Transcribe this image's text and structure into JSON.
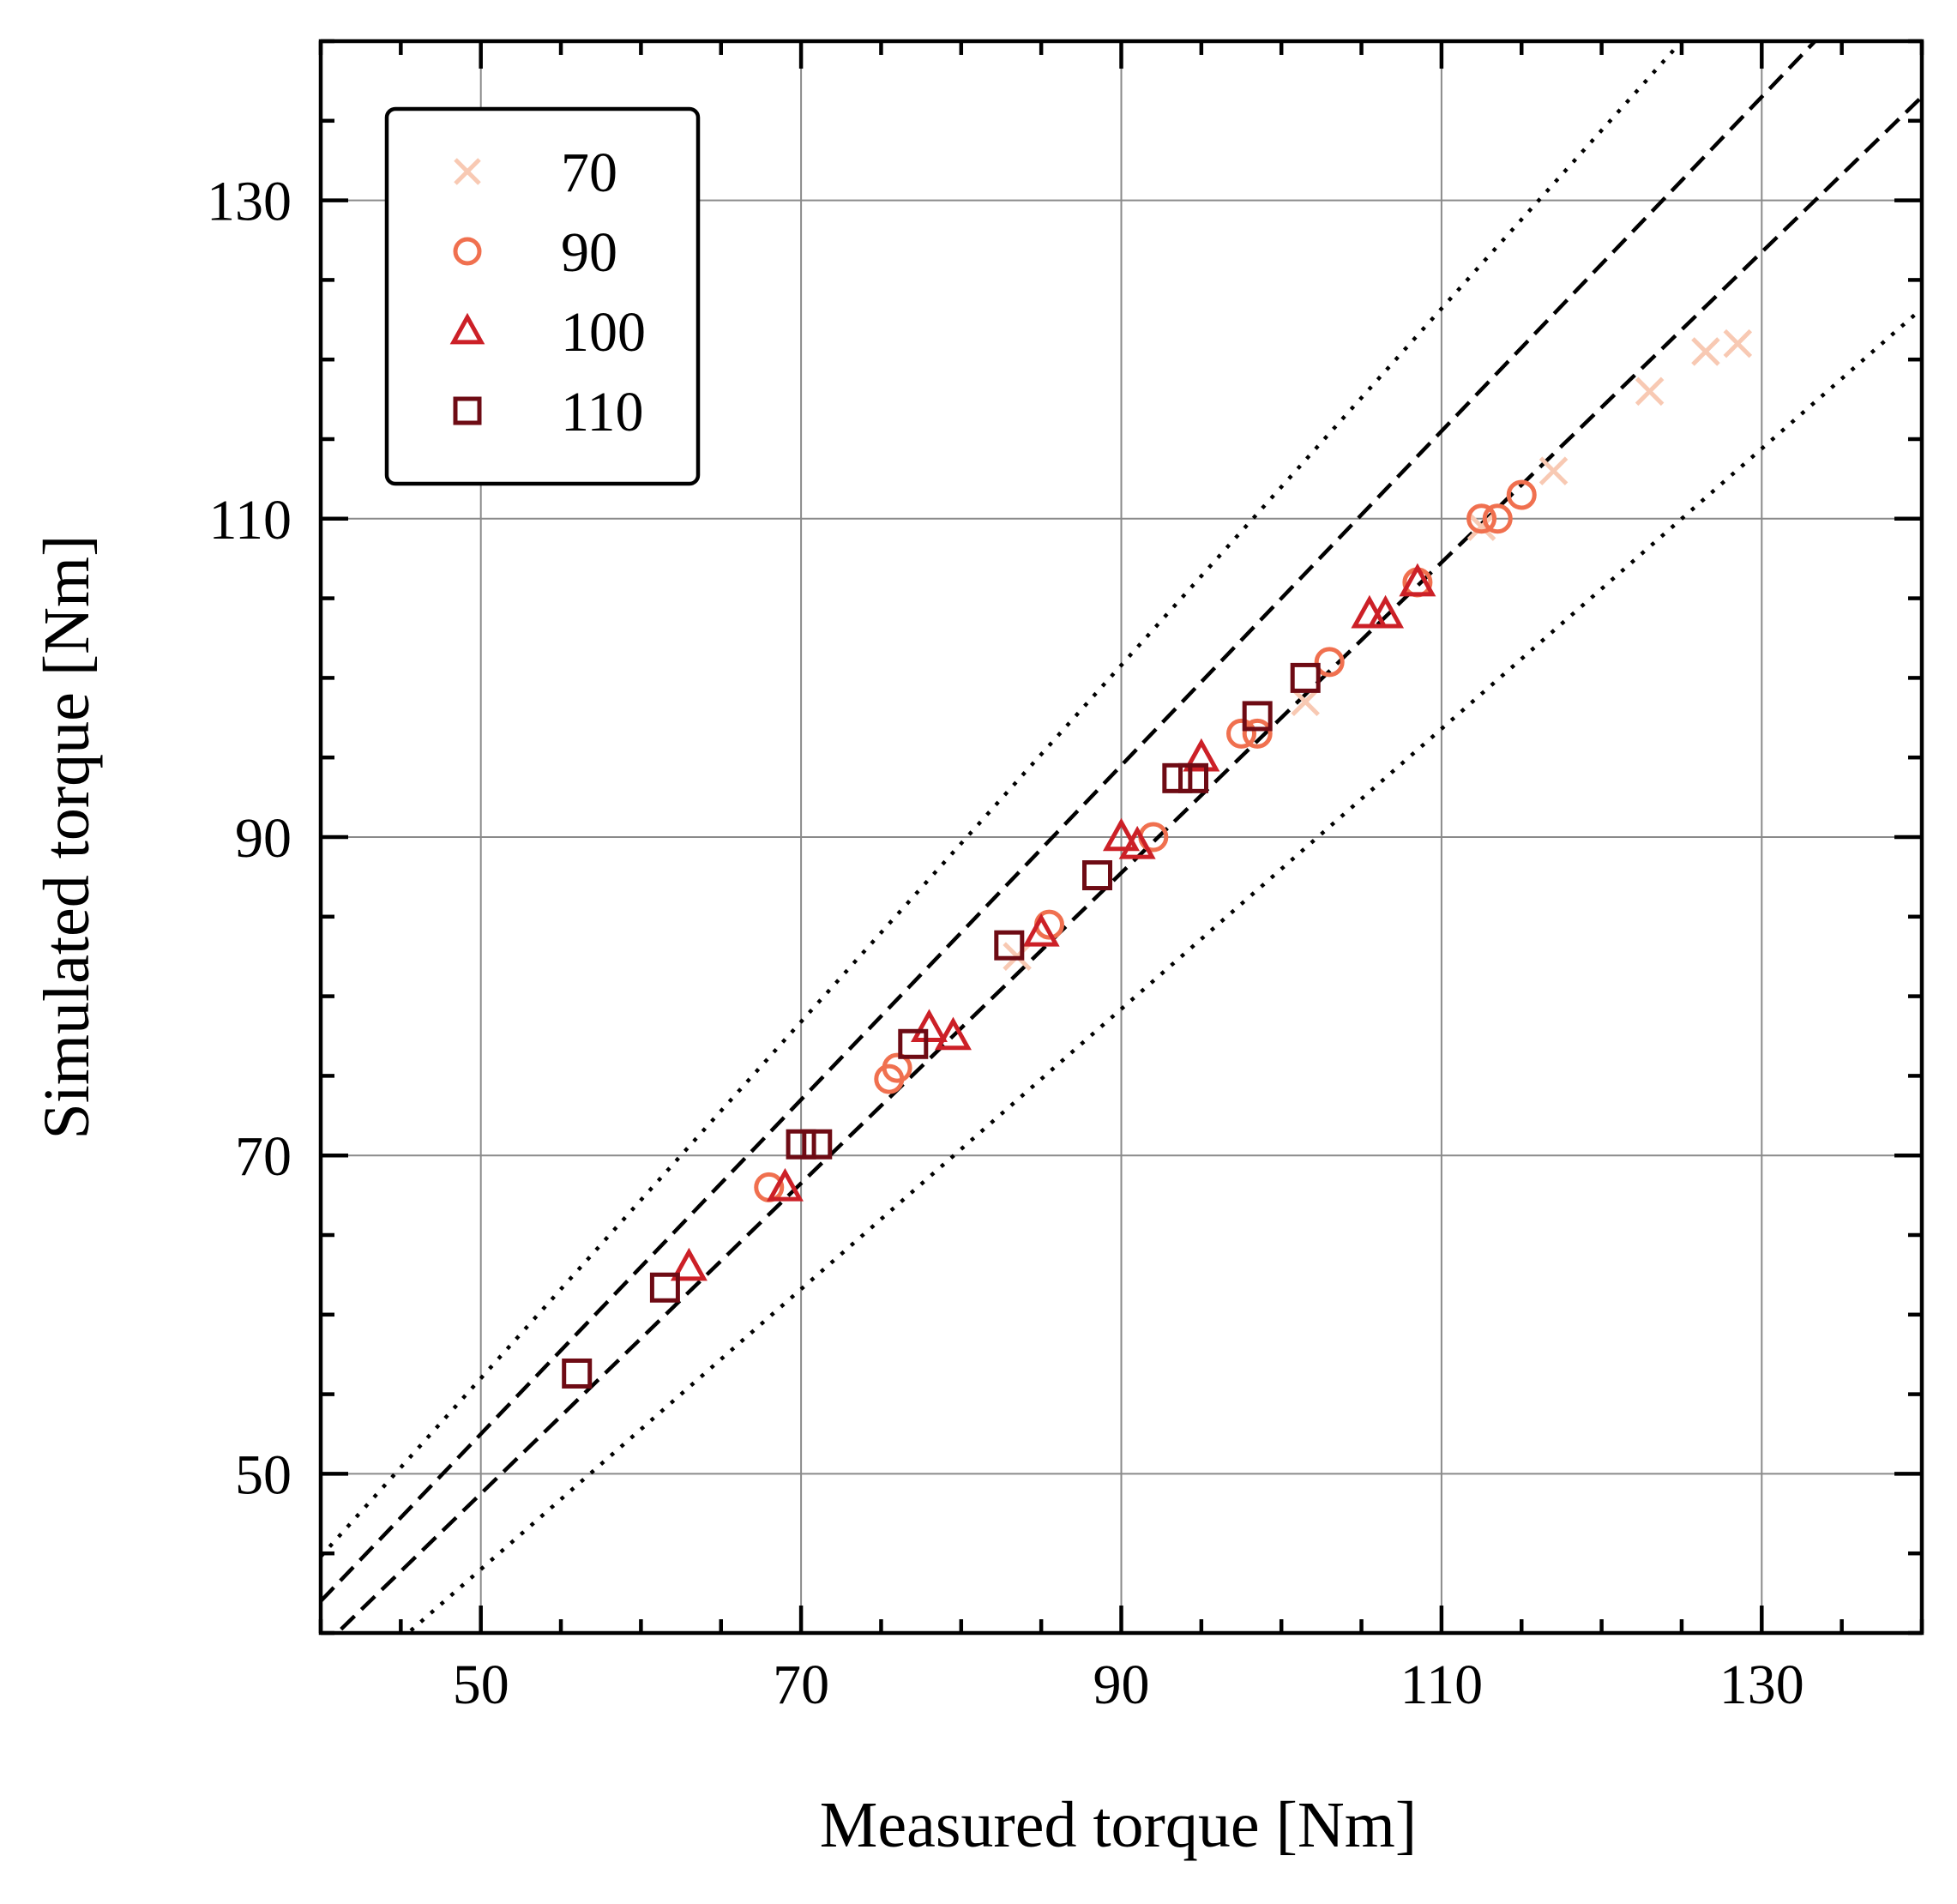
{
  "chart_data": {
    "type": "scatter",
    "xlabel": "Measured torque [Nm]",
    "ylabel": "Simulated torque [Nm]",
    "xlim": [
      40,
      140
    ],
    "ylim": [
      40,
      140
    ],
    "xticks": [
      50,
      70,
      90,
      110,
      130
    ],
    "yticks": [
      50,
      70,
      90,
      110,
      130
    ],
    "xtick_labels": [
      "50",
      "70",
      "90",
      "110",
      "130"
    ],
    "ytick_labels": [
      "50",
      "70",
      "90",
      "110",
      "130"
    ],
    "grid": true,
    "legend_position": "top-left",
    "reference_lines": [
      {
        "style": "dashed",
        "slope": 1.05,
        "intercept": 0
      },
      {
        "style": "dashed",
        "slope": 0.975,
        "intercept": 0
      },
      {
        "style": "dotted",
        "slope": 1.12,
        "intercept": 0
      },
      {
        "style": "dotted",
        "slope": 0.88,
        "intercept": 0
      }
    ],
    "series": [
      {
        "name": "70",
        "marker": "x",
        "color": "#f8c9b3",
        "points": [
          [
            83.5,
            82.5
          ],
          [
            101.5,
            98.5
          ],
          [
            112.5,
            109.5
          ],
          [
            117,
            113
          ],
          [
            123,
            118
          ],
          [
            126.5,
            120.5
          ],
          [
            128.5,
            121
          ]
        ]
      },
      {
        "name": "90",
        "marker": "o",
        "color": "#f0704f",
        "points": [
          [
            68,
            68
          ],
          [
            75.5,
            74.8
          ],
          [
            76,
            75.5
          ],
          [
            85.5,
            84.5
          ],
          [
            92,
            90
          ],
          [
            97.5,
            96.5
          ],
          [
            98.5,
            96.5
          ],
          [
            103,
            101
          ],
          [
            108.5,
            106
          ],
          [
            112.5,
            110
          ],
          [
            113.5,
            110
          ],
          [
            115,
            111.5
          ]
        ]
      },
      {
        "name": "100",
        "marker": "^",
        "color": "#cc2027",
        "points": [
          [
            63,
            63
          ],
          [
            69,
            68
          ],
          [
            78,
            78
          ],
          [
            79.5,
            77.5
          ],
          [
            85,
            84
          ],
          [
            90,
            90
          ],
          [
            91,
            89.5
          ],
          [
            95,
            95
          ],
          [
            105.5,
            104
          ],
          [
            106.5,
            104
          ],
          [
            108.5,
            106
          ]
        ]
      },
      {
        "name": "110",
        "marker": "s",
        "color": "#6e0b14",
        "points": [
          [
            56,
            56.3
          ],
          [
            61.5,
            61.7
          ],
          [
            70,
            70.7
          ],
          [
            71,
            70.7
          ],
          [
            77,
            77
          ],
          [
            83,
            83.2
          ],
          [
            88.5,
            87.6
          ],
          [
            93.5,
            93.7
          ],
          [
            94.5,
            93.7
          ],
          [
            98.5,
            97.6
          ],
          [
            101.5,
            100
          ]
        ]
      }
    ]
  }
}
